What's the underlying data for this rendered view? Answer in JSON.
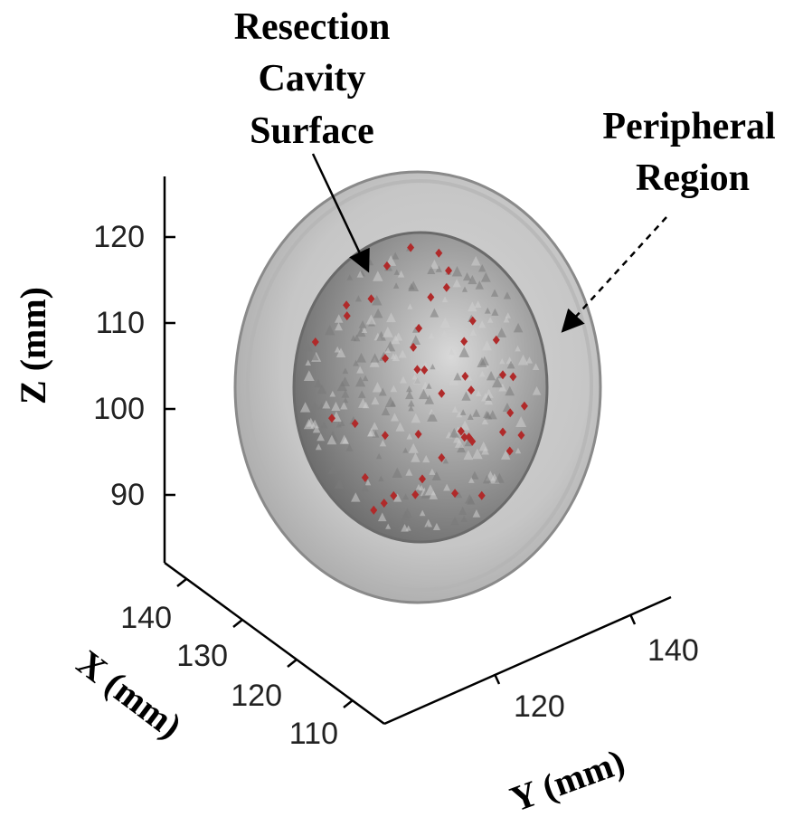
{
  "chart_data": {
    "type": "3d-surface",
    "annotations": {
      "cavity_lines": [
        "Resection",
        "Cavity",
        "Surface"
      ],
      "peripheral_lines": [
        "Peripheral",
        "Region"
      ]
    },
    "axes": {
      "z": {
        "label": "Z (mm)",
        "ticks": [
          "120",
          "110",
          "100",
          "90"
        ]
      },
      "x": {
        "label": "X (mm)",
        "ticks": [
          "140",
          "130",
          "120",
          "110"
        ]
      },
      "y": {
        "label": "Y (mm)",
        "ticks": [
          "120",
          "140"
        ]
      }
    },
    "colors": {
      "outer_surface": "#bfbfbf",
      "inner_surface": "#8e8e8e",
      "marker": "#b02a2a",
      "axis": "#000000"
    }
  }
}
